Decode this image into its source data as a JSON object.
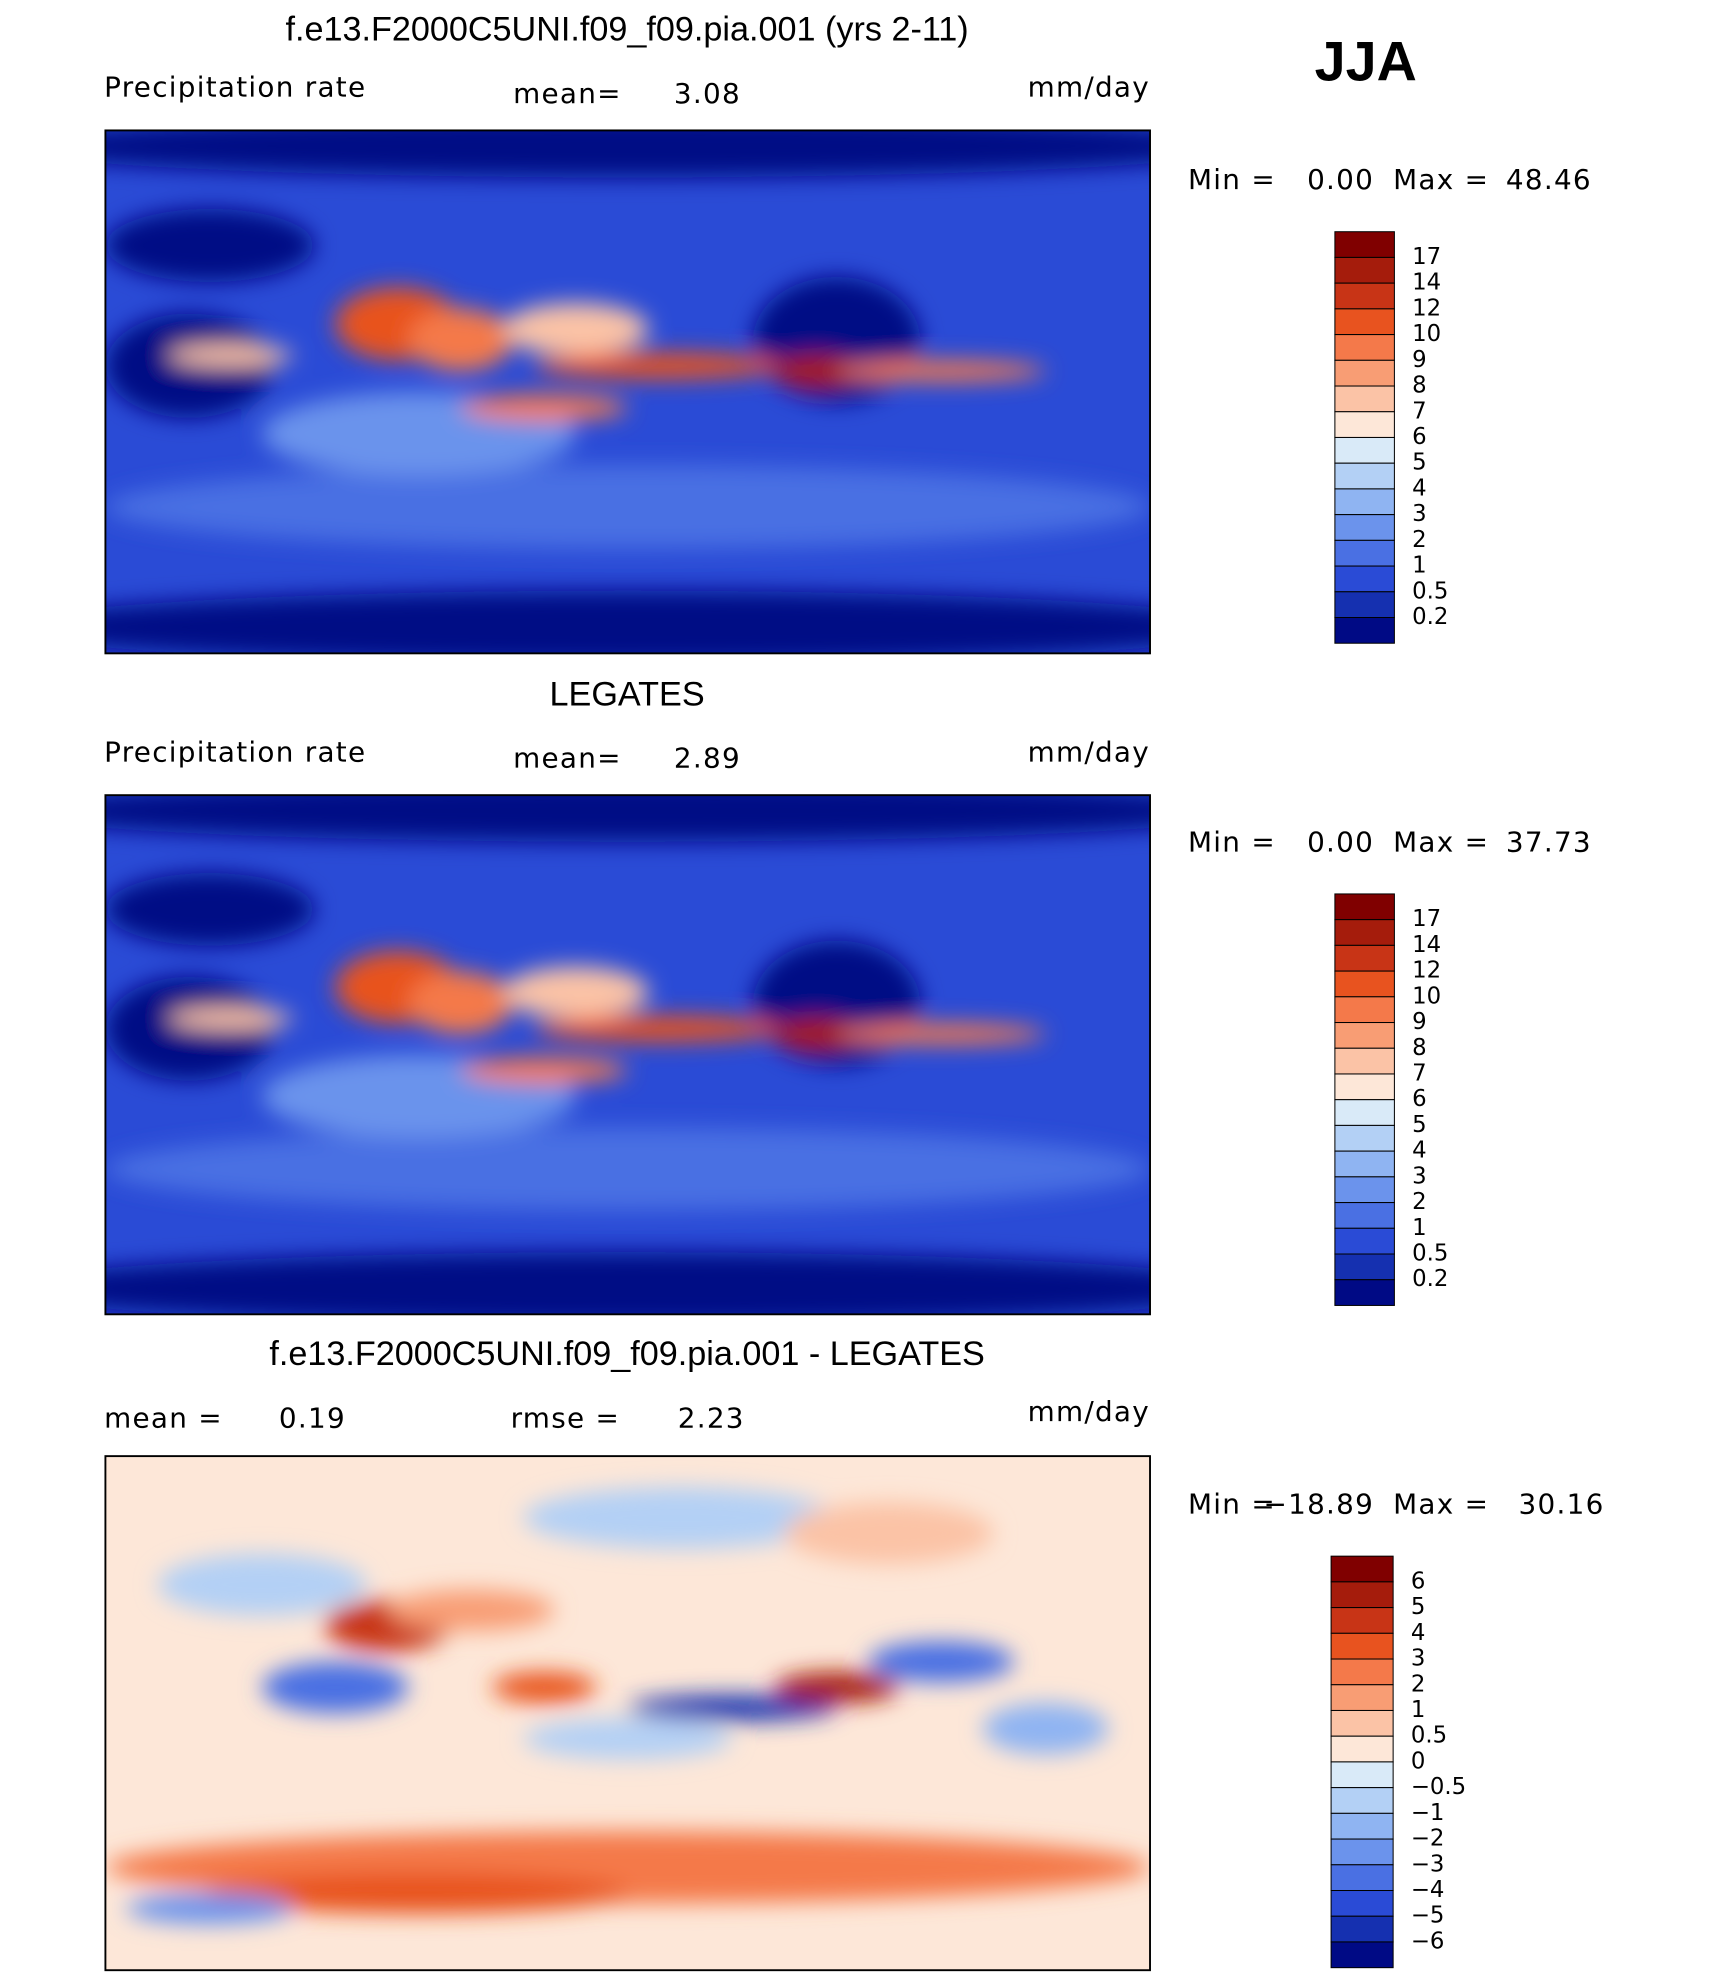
{
  "header": {
    "season": "JJA"
  },
  "panels": [
    {
      "title": "f.e13.F2000C5UNI.f09_f09.pia.001 (yrs 2-11)",
      "variable": "Precipitation rate",
      "mean_label": "mean=",
      "mean": "3.08",
      "units": "mm/day",
      "min_label": "Min =",
      "min": "0.00",
      "max_label": "Max =",
      "max": "48.46",
      "colorbar": {
        "labels": [
          "17",
          "14",
          "12",
          "10",
          "9",
          "8",
          "7",
          "6",
          "5",
          "4",
          "3",
          "2",
          "1",
          "0.5",
          "0.2"
        ],
        "colors": [
          "#800000",
          "#a51c0c",
          "#c83416",
          "#e8531f",
          "#f4794a",
          "#f89d74",
          "#fbc3a6",
          "#fde7d8",
          "#d9eaf8",
          "#b3d0f5",
          "#8fb4f2",
          "#6b93ec",
          "#4a70e3",
          "#2a4bd6",
          "#1530b0",
          "#000a85"
        ]
      }
    },
    {
      "title": "LEGATES",
      "variable": "Precipitation rate",
      "mean_label": "mean=",
      "mean": "2.89",
      "units": "mm/day",
      "min_label": "Min =",
      "min": "0.00",
      "max_label": "Max =",
      "max": "37.73",
      "colorbar": {
        "labels": [
          "17",
          "14",
          "12",
          "10",
          "9",
          "8",
          "7",
          "6",
          "5",
          "4",
          "3",
          "2",
          "1",
          "0.5",
          "0.2"
        ],
        "colors": [
          "#800000",
          "#a51c0c",
          "#c83416",
          "#e8531f",
          "#f4794a",
          "#f89d74",
          "#fbc3a6",
          "#fde7d8",
          "#d9eaf8",
          "#b3d0f5",
          "#8fb4f2",
          "#6b93ec",
          "#4a70e3",
          "#2a4bd6",
          "#1530b0",
          "#000a85"
        ]
      }
    },
    {
      "title": "f.e13.F2000C5UNI.f09_f09.pia.001 - LEGATES",
      "mean_label": "mean =",
      "mean": "0.19",
      "rmse_label": "rmse =",
      "rmse": "2.23",
      "units": "mm/day",
      "min_label": "Min =",
      "min": "−18.89",
      "max_label": "Max =",
      "max": "30.16",
      "colorbar": {
        "labels": [
          "6",
          "5",
          "4",
          "3",
          "2",
          "1",
          "0.5",
          "0",
          "−0.5",
          "−1",
          "−2",
          "−3",
          "−4",
          "−5",
          "−6"
        ],
        "colors": [
          "#800000",
          "#a51c0c",
          "#c83416",
          "#e8531f",
          "#f4794a",
          "#f89d74",
          "#fbc3a6",
          "#fde7d8",
          "#d9eaf8",
          "#b3d0f5",
          "#8fb4f2",
          "#6b93ec",
          "#4a70e3",
          "#2a4bd6",
          "#1530b0",
          "#000a85"
        ]
      }
    }
  ]
}
